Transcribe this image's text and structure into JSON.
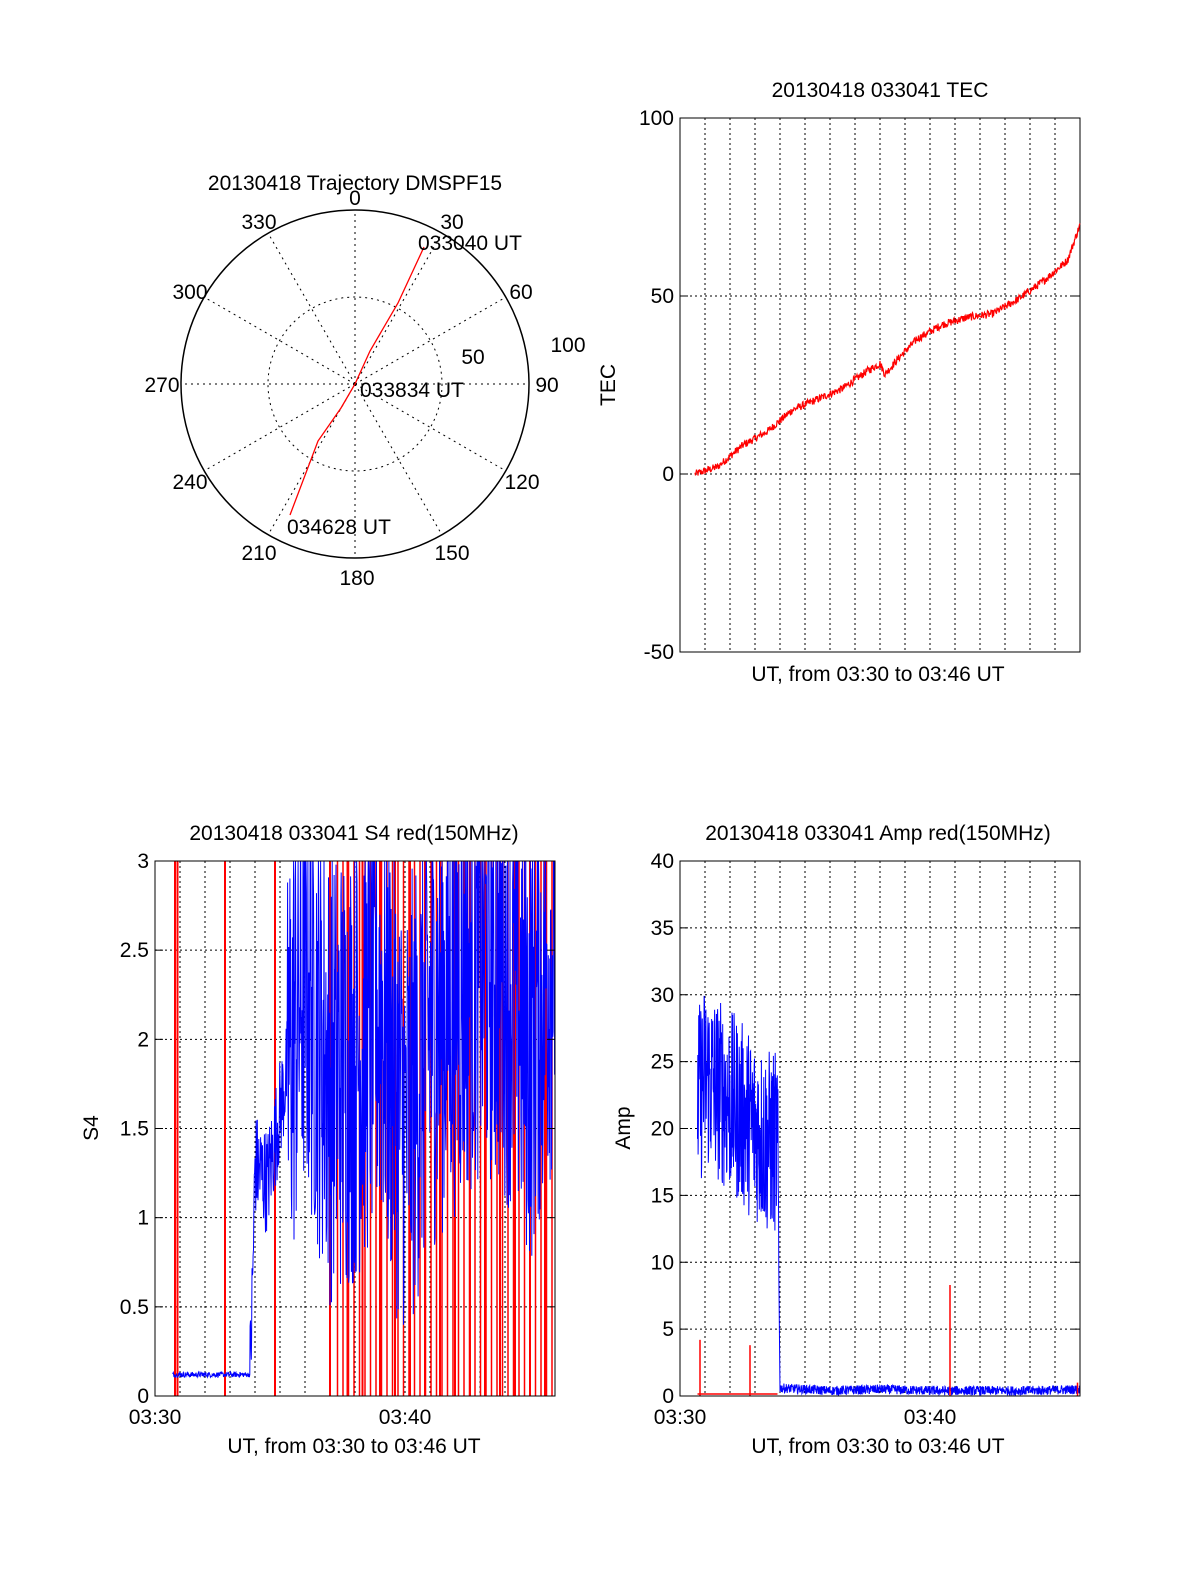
{
  "colors": {
    "red": "#ff0000",
    "blue": "#0000ff",
    "axis": "#000000",
    "grid": "#000000"
  },
  "chart_data": [
    {
      "type": "polar",
      "title": "20130418 Trajectory DMSPF15",
      "angle_labels": [
        "0",
        "30",
        "60",
        "90",
        "120",
        "150",
        "180",
        "210",
        "240",
        "270",
        "300",
        "330"
      ],
      "radial_labels": [
        "50",
        "100"
      ],
      "rlim": [
        0,
        100
      ],
      "grid": true,
      "trajectory": {
        "from_az": 26,
        "from_r": 85,
        "to_az": 214,
        "to_r": 77,
        "points": [
          [
            26,
            85
          ],
          [
            30,
            48
          ],
          [
            35,
            10
          ],
          [
            214,
            40
          ],
          [
            214,
            77
          ]
        ]
      },
      "annotations": [
        "033040 UT",
        "033834 UT",
        "034628 UT"
      ]
    },
    {
      "type": "line",
      "title": "20130418 033041 TEC",
      "ylabel": "TEC",
      "xlabel": "UT, from 03:30 to 03:46 UT",
      "ylim": [
        -50,
        100
      ],
      "yticks": [
        "-50",
        "0",
        "50",
        "100"
      ],
      "xlim": [
        0,
        16
      ],
      "xticks": [],
      "grid": true,
      "series": [
        {
          "color": "red",
          "x": [
            0.6,
            1.5,
            2.5,
            3.5,
            4.5,
            5.5,
            6.5,
            7.5,
            8,
            8.2,
            8.8,
            9.5,
            10.5,
            11.5,
            12.5,
            13.5,
            14.5,
            15.5,
            16
          ],
          "y": [
            0,
            2,
            8,
            12,
            18,
            21,
            24,
            29,
            31,
            28,
            33,
            38,
            42,
            44,
            45,
            49,
            54,
            60,
            70
          ]
        }
      ]
    },
    {
      "type": "line",
      "title": "20130418 033041 S4 red(150MHz)",
      "ylabel": "S4",
      "xlabel": "UT, from 03:30 to 03:46 UT",
      "ylim": [
        0,
        3
      ],
      "yticks": [
        "0",
        "0.5",
        "1",
        "1.5",
        "2",
        "2.5",
        "3"
      ],
      "xlim": [
        0,
        16
      ],
      "xticks": [
        "03:30",
        "03:40"
      ],
      "grid": true,
      "series": [
        {
          "color": "blue",
          "x": [
            0.7,
            3.8,
            3.9,
            4.0,
            4.5,
            5.0,
            5.5,
            6.0,
            7.0,
            8.0,
            9.0,
            10.0,
            11.0,
            12.0,
            13.0,
            14.0,
            15.0,
            16.0
          ],
          "y": [
            0.12,
            0.12,
            0.6,
            1.3,
            1.2,
            1.6,
            2.0,
            2.4,
            1.8,
            1.9,
            2.2,
            1.5,
            2.1,
            2.3,
            2.5,
            2.4,
            2.0,
            2.6
          ]
        },
        {
          "color": "red",
          "x": [
            0.8,
            0.9,
            2.8,
            4.8,
            7.0,
            7.7,
            8.3,
            9.0,
            9.6,
            10.2,
            10.8,
            11.4,
            12.0,
            12.6,
            13.2,
            13.8,
            14.4,
            15.0,
            15.6
          ],
          "y": [
            3,
            3,
            3,
            3,
            3,
            3,
            3,
            3,
            3,
            3,
            3,
            3,
            3,
            3,
            3,
            3,
            3,
            3,
            3
          ]
        }
      ]
    },
    {
      "type": "line",
      "title": "20130418 033041 Amp red(150MHz)",
      "ylabel": "Amp",
      "xlabel": "UT, from 03:30 to 03:46 UT",
      "ylim": [
        0,
        40
      ],
      "yticks": [
        "0",
        "5",
        "10",
        "15",
        "20",
        "25",
        "30",
        "35",
        "40"
      ],
      "xlim": [
        0,
        16
      ],
      "xticks": [
        "03:30",
        "03:40"
      ],
      "grid": true,
      "series": [
        {
          "color": "blue",
          "x": [
            0.7,
            1.0,
            1.5,
            2.0,
            2.5,
            3.0,
            3.5,
            3.9,
            4.0,
            6.0,
            8.0,
            10.0,
            12.0,
            14.0,
            16.0
          ],
          "y": [
            22,
            24,
            23,
            22,
            21,
            20,
            19,
            19,
            0.6,
            0.4,
            0.5,
            0.4,
            0.4,
            0.4,
            0.5
          ]
        },
        {
          "color": "red",
          "x": [
            0.8,
            2.8,
            10.8,
            15.9
          ],
          "y": [
            4.2,
            3.8,
            8.3,
            1.0
          ]
        }
      ]
    }
  ]
}
